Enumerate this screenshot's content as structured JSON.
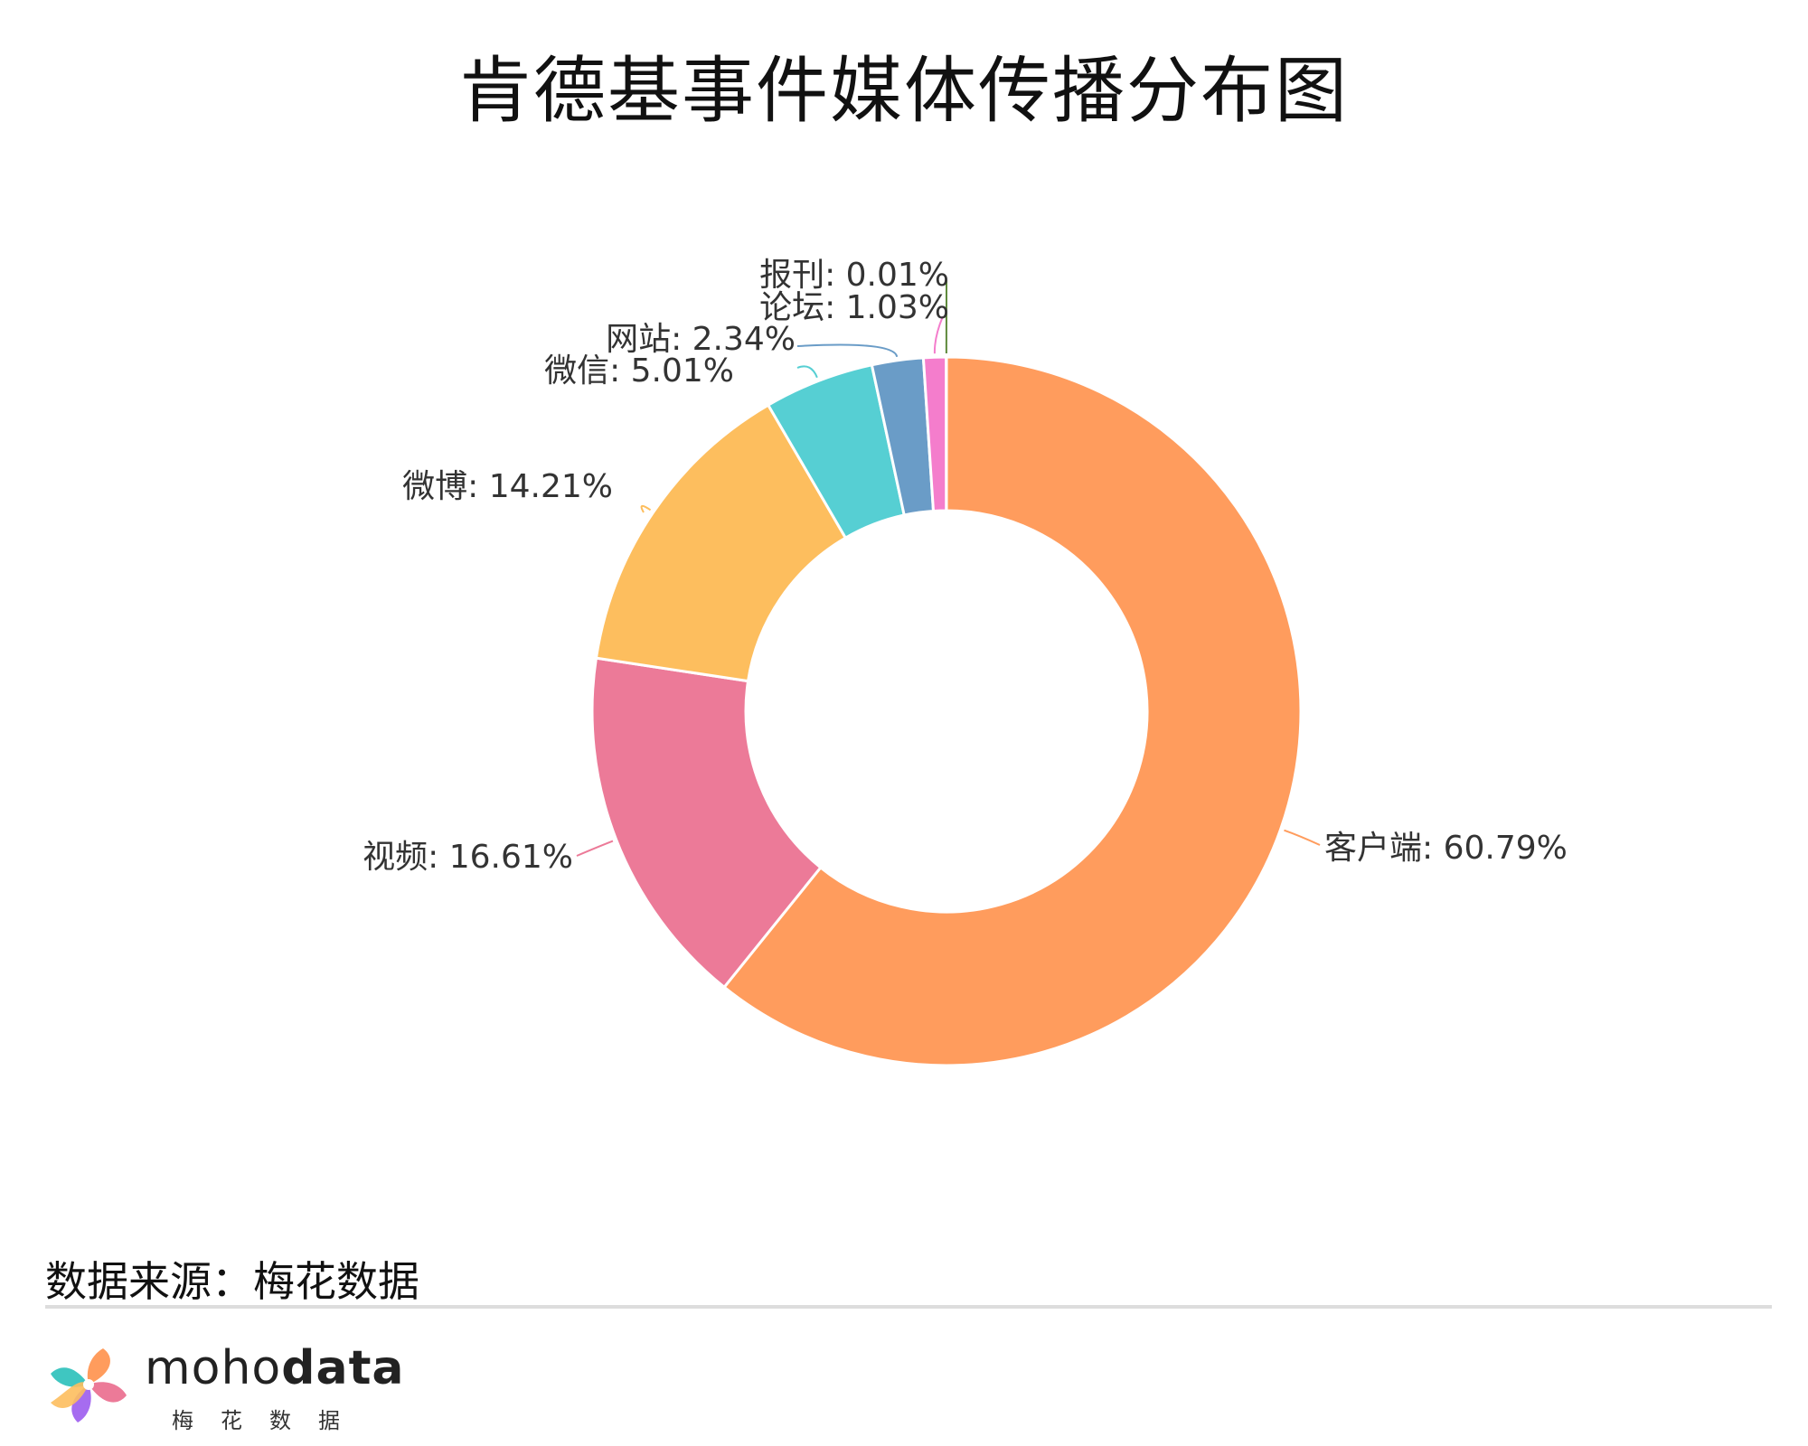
{
  "chart_data": {
    "type": "pie",
    "variant": "donut",
    "title": "肯德基事件媒体传播分布图",
    "slices": [
      {
        "name": "客户端",
        "value": 60.79,
        "color": "#FF9C5D",
        "label": "客户端: 60.79%"
      },
      {
        "name": "视频",
        "value": 16.61,
        "color": "#EC7A98",
        "label": "视频: 16.61%"
      },
      {
        "name": "微博",
        "value": 14.21,
        "color": "#FDBE5E",
        "label": "微博: 14.21%"
      },
      {
        "name": "微信",
        "value": 5.01,
        "color": "#56CFD3",
        "label": "微信: 5.01%"
      },
      {
        "name": "网站",
        "value": 2.34,
        "color": "#6A9CC7",
        "label": "网站: 2.34%"
      },
      {
        "name": "论坛",
        "value": 1.03,
        "color": "#F47DCC",
        "label": "论坛: 1.03%"
      },
      {
        "name": "报刊",
        "value": 0.01,
        "color": "#5E8A3B",
        "label": "报刊: 0.01%"
      }
    ]
  },
  "footer": {
    "source": "数据来源：梅花数据",
    "logo_light": "moho",
    "logo_bold": "data",
    "logo_sub": "梅花数据"
  }
}
